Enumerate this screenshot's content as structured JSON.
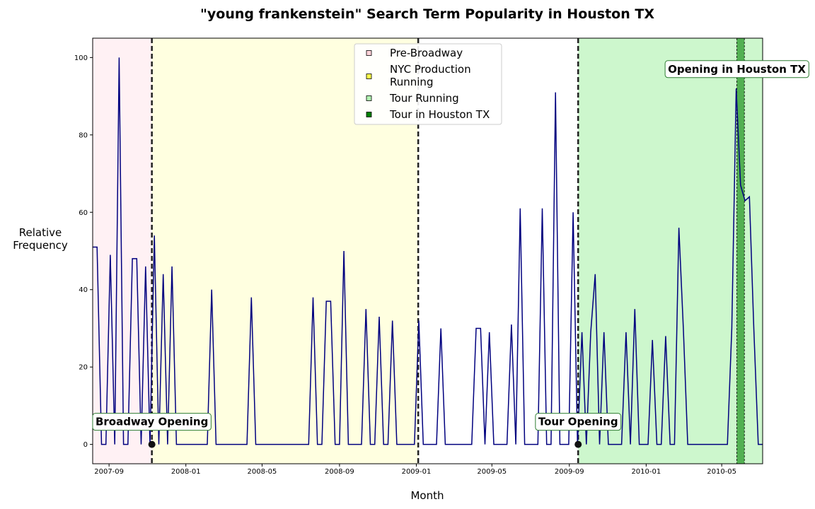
{
  "chart_data": {
    "type": "line",
    "title": "\"young frankenstein\" Search Term Popularity in Houston TX",
    "xlabel": "Month",
    "ylabel": "Relative\nFrequency",
    "xlim": [
      "2007-08-06",
      "2010-07-05"
    ],
    "ylim": [
      -5,
      105
    ],
    "x_tick_labels": [
      "2007-09",
      "2008-01",
      "2008-05",
      "2008-09",
      "2009-01",
      "2009-05",
      "2009-09",
      "2010-01",
      "2010-05"
    ],
    "y_ticks": [
      0,
      20,
      40,
      60,
      80,
      100
    ],
    "grid": false,
    "line_color": "#00007f",
    "series": [
      {
        "values": [
          [
            "2007-08-06",
            51
          ],
          [
            "2007-08-13",
            51
          ],
          [
            "2007-08-20",
            0
          ],
          [
            "2007-08-27",
            0
          ],
          [
            "2007-09-03",
            49
          ],
          [
            "2007-09-10",
            0
          ],
          [
            "2007-09-17",
            100
          ],
          [
            "2007-09-24",
            0
          ],
          [
            "2007-10-01",
            0
          ],
          [
            "2007-10-08",
            48
          ],
          [
            "2007-10-15",
            48
          ],
          [
            "2007-10-22",
            0
          ],
          [
            "2007-10-29",
            46
          ],
          [
            "2007-11-05",
            0
          ],
          [
            "2007-11-12",
            54
          ],
          [
            "2007-11-19",
            0
          ],
          [
            "2007-11-26",
            44
          ],
          [
            "2007-12-03",
            0
          ],
          [
            "2007-12-10",
            46
          ],
          [
            "2007-12-17",
            0
          ],
          [
            "2007-12-24",
            0
          ],
          [
            "2007-12-31",
            0
          ],
          [
            "2008-01-07",
            0
          ],
          [
            "2008-01-14",
            0
          ],
          [
            "2008-01-21",
            0
          ],
          [
            "2008-01-28",
            0
          ],
          [
            "2008-02-04",
            0
          ],
          [
            "2008-02-11",
            40
          ],
          [
            "2008-02-18",
            0
          ],
          [
            "2008-02-25",
            0
          ],
          [
            "2008-03-03",
            0
          ],
          [
            "2008-03-10",
            0
          ],
          [
            "2008-03-17",
            0
          ],
          [
            "2008-03-24",
            0
          ],
          [
            "2008-03-31",
            0
          ],
          [
            "2008-04-07",
            0
          ],
          [
            "2008-04-14",
            38
          ],
          [
            "2008-04-21",
            0
          ],
          [
            "2008-04-28",
            0
          ],
          [
            "2008-05-05",
            0
          ],
          [
            "2008-05-12",
            0
          ],
          [
            "2008-05-19",
            0
          ],
          [
            "2008-05-26",
            0
          ],
          [
            "2008-06-02",
            0
          ],
          [
            "2008-06-09",
            0
          ],
          [
            "2008-06-16",
            0
          ],
          [
            "2008-06-23",
            0
          ],
          [
            "2008-06-30",
            0
          ],
          [
            "2008-07-07",
            0
          ],
          [
            "2008-07-14",
            0
          ],
          [
            "2008-07-21",
            38
          ],
          [
            "2008-07-28",
            0
          ],
          [
            "2008-08-04",
            0
          ],
          [
            "2008-08-11",
            37
          ],
          [
            "2008-08-18",
            37
          ],
          [
            "2008-08-25",
            0
          ],
          [
            "2008-09-01",
            0
          ],
          [
            "2008-09-08",
            50
          ],
          [
            "2008-09-15",
            0
          ],
          [
            "2008-09-22",
            0
          ],
          [
            "2008-09-29",
            0
          ],
          [
            "2008-10-06",
            0
          ],
          [
            "2008-10-13",
            35
          ],
          [
            "2008-10-20",
            0
          ],
          [
            "2008-10-27",
            0
          ],
          [
            "2008-11-03",
            33
          ],
          [
            "2008-11-10",
            0
          ],
          [
            "2008-11-17",
            0
          ],
          [
            "2008-11-24",
            32
          ],
          [
            "2008-12-01",
            0
          ],
          [
            "2008-12-08",
            0
          ],
          [
            "2008-12-15",
            0
          ],
          [
            "2008-12-22",
            0
          ],
          [
            "2008-12-29",
            0
          ],
          [
            "2009-01-05",
            32
          ],
          [
            "2009-01-12",
            0
          ],
          [
            "2009-01-19",
            0
          ],
          [
            "2009-01-26",
            0
          ],
          [
            "2009-02-02",
            0
          ],
          [
            "2009-02-09",
            30
          ],
          [
            "2009-02-16",
            0
          ],
          [
            "2009-02-23",
            0
          ],
          [
            "2009-03-02",
            0
          ],
          [
            "2009-03-09",
            0
          ],
          [
            "2009-03-16",
            0
          ],
          [
            "2009-03-23",
            0
          ],
          [
            "2009-03-30",
            0
          ],
          [
            "2009-04-06",
            30
          ],
          [
            "2009-04-13",
            30
          ],
          [
            "2009-04-20",
            0
          ],
          [
            "2009-04-27",
            29
          ],
          [
            "2009-05-04",
            0
          ],
          [
            "2009-05-11",
            0
          ],
          [
            "2009-05-18",
            0
          ],
          [
            "2009-05-25",
            0
          ],
          [
            "2009-06-01",
            31
          ],
          [
            "2009-06-08",
            0
          ],
          [
            "2009-06-15",
            61
          ],
          [
            "2009-06-22",
            0
          ],
          [
            "2009-06-29",
            0
          ],
          [
            "2009-07-06",
            0
          ],
          [
            "2009-07-13",
            0
          ],
          [
            "2009-07-20",
            61
          ],
          [
            "2009-07-27",
            0
          ],
          [
            "2009-08-03",
            0
          ],
          [
            "2009-08-10",
            91
          ],
          [
            "2009-08-17",
            0
          ],
          [
            "2009-08-24",
            0
          ],
          [
            "2009-08-31",
            0
          ],
          [
            "2009-09-07",
            60
          ],
          [
            "2009-09-14",
            0
          ],
          [
            "2009-09-21",
            29
          ],
          [
            "2009-09-28",
            0
          ],
          [
            "2009-10-05",
            29
          ],
          [
            "2009-10-12",
            44
          ],
          [
            "2009-10-19",
            0
          ],
          [
            "2009-10-26",
            29
          ],
          [
            "2009-11-02",
            0
          ],
          [
            "2009-11-09",
            0
          ],
          [
            "2009-11-16",
            0
          ],
          [
            "2009-11-23",
            0
          ],
          [
            "2009-11-30",
            29
          ],
          [
            "2009-12-07",
            0
          ],
          [
            "2009-12-14",
            35
          ],
          [
            "2009-12-21",
            0
          ],
          [
            "2009-12-28",
            0
          ],
          [
            "2010-01-04",
            0
          ],
          [
            "2010-01-11",
            27
          ],
          [
            "2010-01-18",
            0
          ],
          [
            "2010-01-25",
            0
          ],
          [
            "2010-02-01",
            28
          ],
          [
            "2010-02-08",
            0
          ],
          [
            "2010-02-15",
            0
          ],
          [
            "2010-02-22",
            56
          ],
          [
            "2010-03-01",
            30
          ],
          [
            "2010-03-08",
            0
          ],
          [
            "2010-03-15",
            0
          ],
          [
            "2010-03-22",
            0
          ],
          [
            "2010-03-29",
            0
          ],
          [
            "2010-04-05",
            0
          ],
          [
            "2010-04-12",
            0
          ],
          [
            "2010-04-19",
            0
          ],
          [
            "2010-04-26",
            0
          ],
          [
            "2010-05-03",
            0
          ],
          [
            "2010-05-10",
            0
          ],
          [
            "2010-05-17",
            30
          ],
          [
            "2010-05-24",
            92
          ],
          [
            "2010-05-31",
            67
          ],
          [
            "2010-06-07",
            63
          ],
          [
            "2010-06-14",
            64
          ],
          [
            "2010-06-21",
            30
          ],
          [
            "2010-06-28",
            0
          ],
          [
            "2010-07-05",
            0
          ]
        ]
      }
    ],
    "shaded_regions": [
      {
        "label": "Pre-Broadway",
        "start": "2007-08-06",
        "end": "2007-11-08",
        "color": "#ffc0cb"
      },
      {
        "label": "NYC Production\nRunning",
        "start": "2007-11-08",
        "end": "2009-01-04",
        "color": "#ffff00"
      },
      {
        "label": "Tour Running",
        "start": "2009-09-15",
        "end": "2010-07-05",
        "color": "#90ee90"
      },
      {
        "label": "Tour in Houston TX",
        "start": "2010-05-25",
        "end": "2010-06-06",
        "color": "#008000"
      }
    ],
    "vertical_lines": [
      "2007-11-08",
      "2009-01-04",
      "2009-09-15"
    ],
    "annotations": [
      {
        "text": "Broadway Opening",
        "x": "2007-11-08",
        "y": 0,
        "marker": true
      },
      {
        "text": "Tour Opening",
        "x": "2009-09-15",
        "y": 0,
        "marker": true
      },
      {
        "text": "Opening in Houston TX",
        "x": "2010-05-25",
        "y": 97,
        "marker": false
      }
    ],
    "legend_placement": "top-center"
  }
}
